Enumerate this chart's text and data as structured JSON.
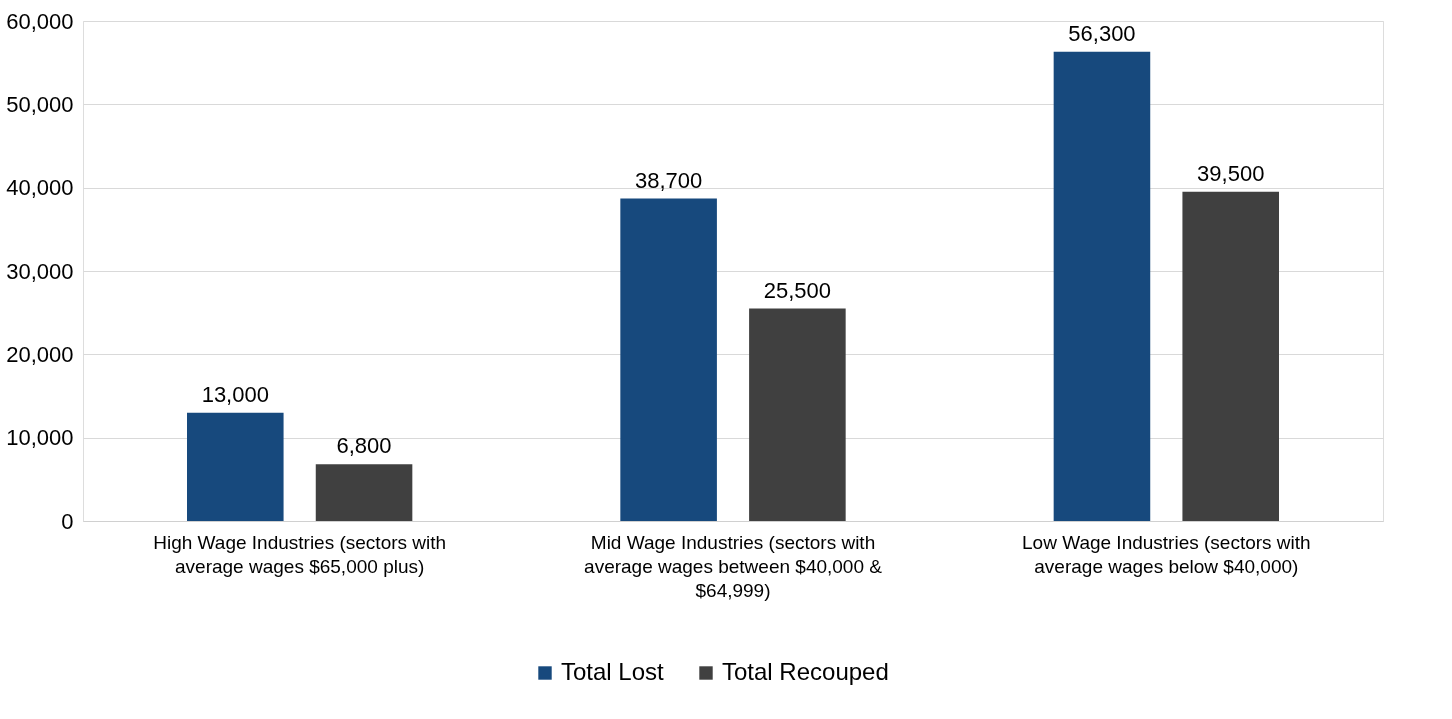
{
  "chart_data": {
    "type": "bar",
    "categories": [
      "High Wage Industries (sectors with average wages $65,000 plus)",
      "Mid Wage Industries (sectors with average wages between $40,000 & $64,999)",
      "Low Wage Industries (sectors with average wages below $40,000)"
    ],
    "series": [
      {
        "name": "Total Lost",
        "color": "#17497d",
        "values": [
          13000,
          38700,
          56300
        ],
        "value_labels": [
          "13,000",
          "38,700",
          "56,300"
        ]
      },
      {
        "name": "Total Recouped",
        "color": "#404040",
        "values": [
          6800,
          25500,
          39500
        ],
        "value_labels": [
          "6,800",
          "25,500",
          "39,500"
        ]
      }
    ],
    "ylim": [
      0,
      60000
    ],
    "yticks": [
      0,
      {
        "value": 10000,
        "label": "10,000"
      },
      {
        "value": 20000,
        "label": "20,000"
      },
      {
        "value": 30000,
        "label": "30,000"
      },
      {
        "value": 40000,
        "label": "40,000"
      },
      {
        "value": 50000,
        "label": "50,000"
      },
      {
        "value": 60000,
        "label": "60,000"
      }
    ],
    "grid": "y",
    "legend": "bottom"
  }
}
